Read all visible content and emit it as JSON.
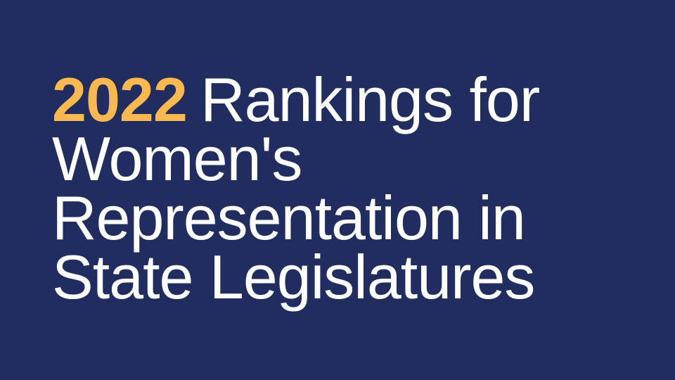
{
  "slide": {
    "background_color": "#212D5E",
    "text_color": "#FFFFFF",
    "highlight_color": "#FAB950"
  },
  "title": {
    "year": "2022",
    "rest_line1": "Rankings for",
    "line2": "Women's",
    "line3": "Representation in",
    "line4": "State Legislatures"
  }
}
